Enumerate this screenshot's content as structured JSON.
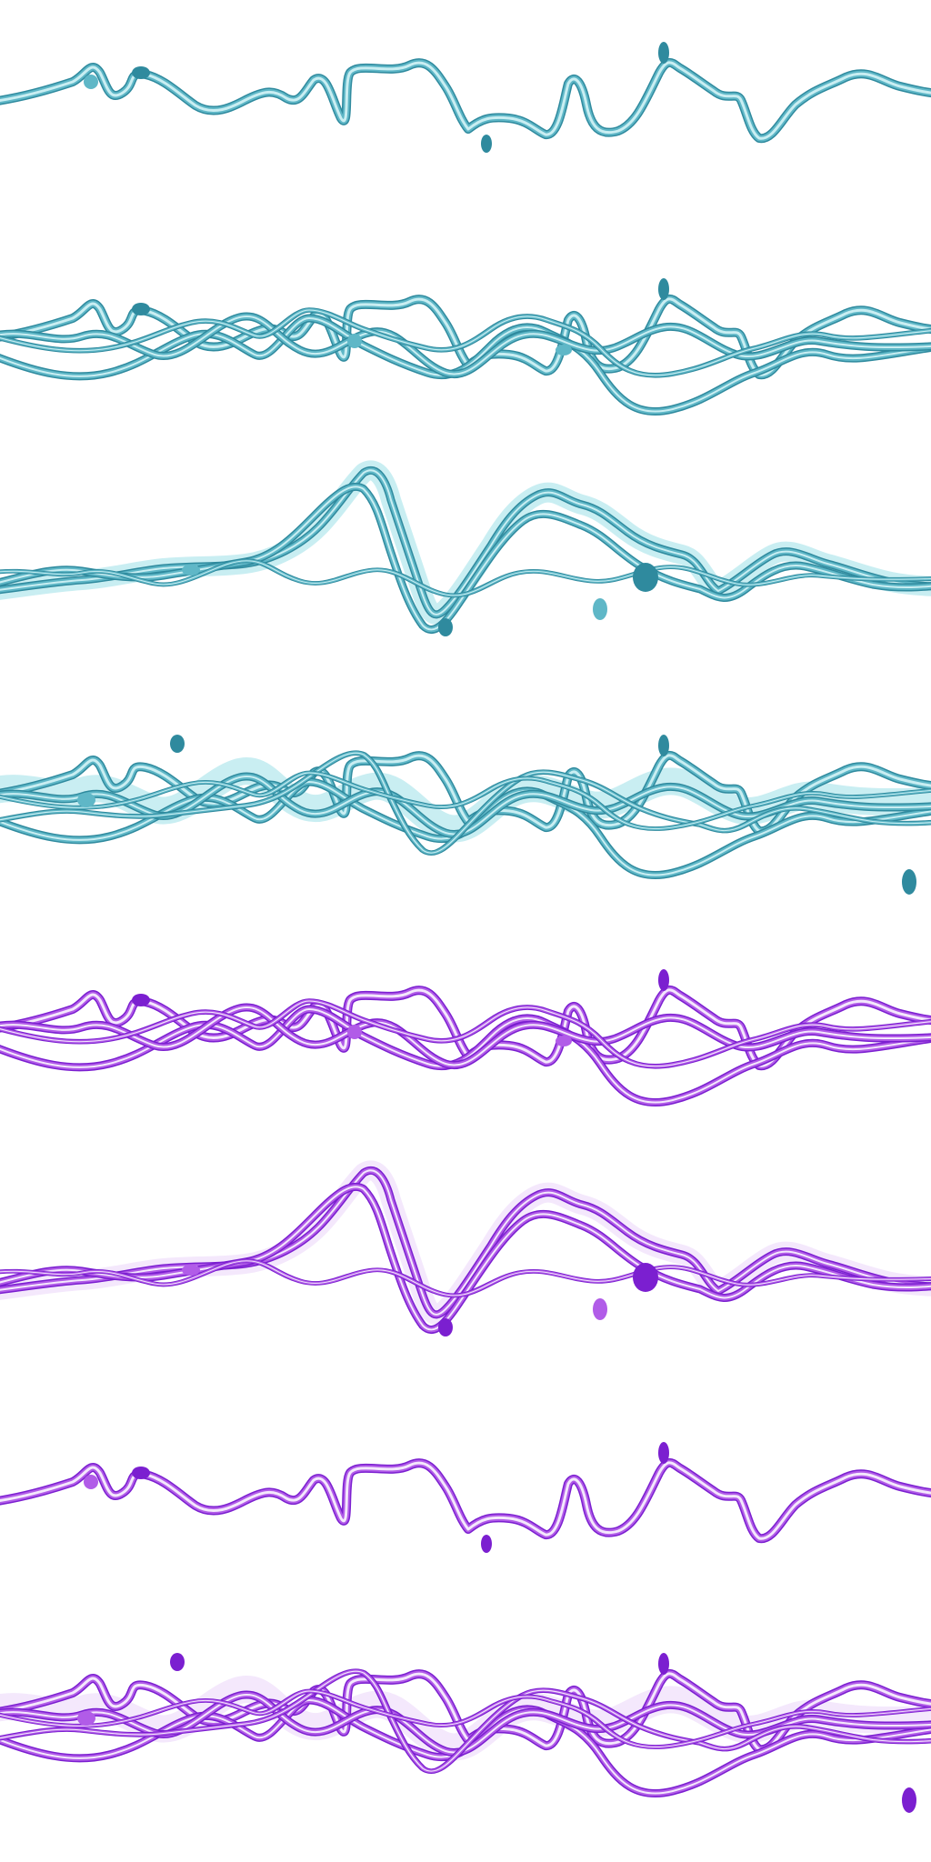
{
  "palettes": {
    "teal": {
      "dark": "#2f8a9e",
      "mid": "#5fb7c7",
      "light": "#c9eef2",
      "accent": "#34c7d0"
    },
    "violet": {
      "dark": "#7b1fd0",
      "mid": "#b15ce8",
      "light": "#f4e8fc",
      "accent": "#9a36e0"
    }
  },
  "strips": [
    {
      "id": "strip-1",
      "palette": "teal",
      "style": "single"
    },
    {
      "id": "strip-2",
      "palette": "teal",
      "style": "tangle"
    },
    {
      "id": "strip-3",
      "palette": "teal",
      "style": "ribbon"
    },
    {
      "id": "strip-4",
      "palette": "teal",
      "style": "dense"
    },
    {
      "id": "strip-5",
      "palette": "violet",
      "style": "tangle"
    },
    {
      "id": "strip-6",
      "palette": "violet",
      "style": "ribbon"
    },
    {
      "id": "strip-7",
      "palette": "violet",
      "style": "single"
    },
    {
      "id": "strip-8",
      "palette": "violet",
      "style": "dense"
    }
  ]
}
